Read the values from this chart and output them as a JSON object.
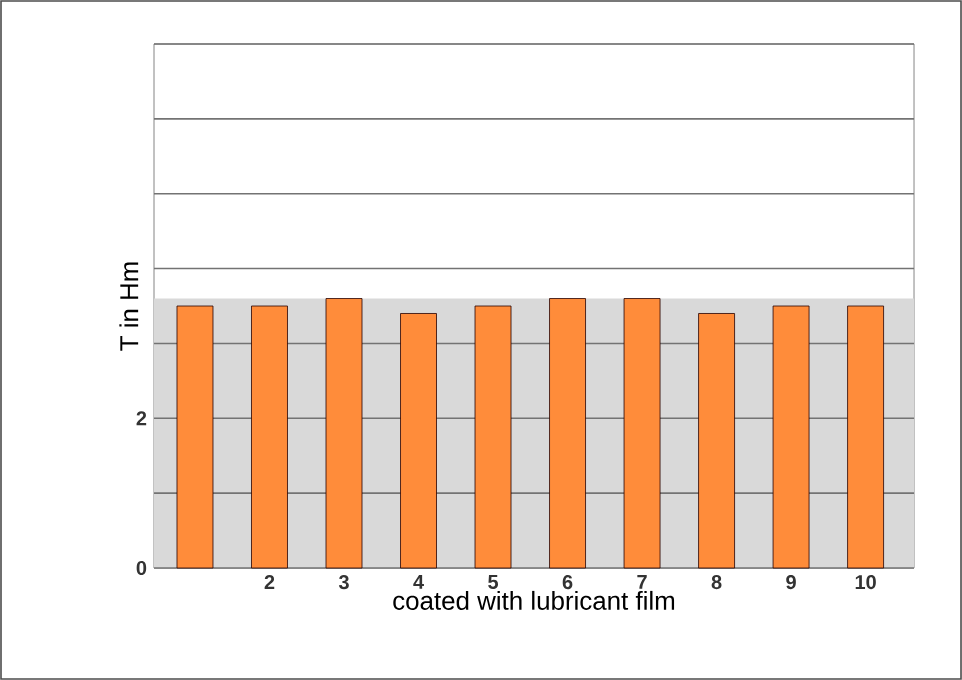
{
  "chart_data": {
    "type": "bar",
    "xlabel": "coated with lubricant film",
    "ylabel": "T in Hm",
    "categories": [
      null,
      "2",
      "3",
      "4",
      "5",
      "6",
      "7",
      "8",
      "9",
      "10"
    ],
    "values": [
      3.5,
      3.5,
      3.6,
      3.4,
      3.5,
      3.6,
      3.6,
      3.4,
      3.5,
      3.5
    ],
    "color": "#ff8c3a",
    "ylim": [
      0,
      7
    ],
    "yticks": [
      0,
      {
        "value": 1,
        "label": null
      },
      2,
      {
        "value": 3,
        "label": null
      },
      {
        "value": 4,
        "label": null
      },
      {
        "value": 5,
        "label": null
      },
      {
        "value": 6,
        "label": null
      },
      {
        "value": 7,
        "label": null
      }
    ],
    "grid": "y",
    "bands": [
      {
        "axis": "y",
        "from": 0,
        "to": 3.6,
        "color": "#d9d9d9"
      }
    ]
  }
}
